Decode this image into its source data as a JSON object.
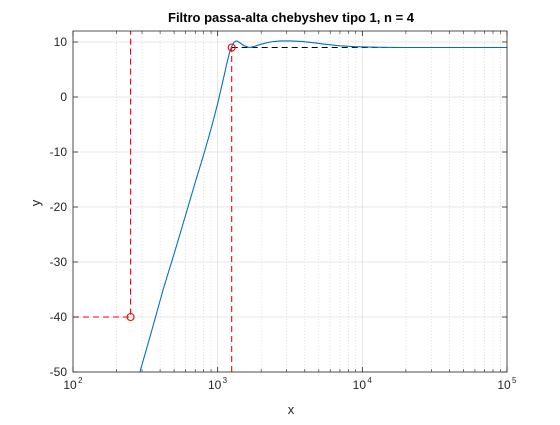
{
  "chart_data": {
    "type": "line",
    "title": "Filtro passa-alta chebyshev tipo 1, n = 4",
    "xlabel": "x",
    "ylabel": "y",
    "xscale": "log",
    "xlim": [
      100,
      100000
    ],
    "ylim": [
      -50,
      12
    ],
    "grid": "major and minor (dotted)",
    "x_tick_labels": [
      {
        "base": "10",
        "exp": "2",
        "value": 100
      },
      {
        "base": "10",
        "exp": "3",
        "value": 1000
      },
      {
        "base": "10",
        "exp": "4",
        "value": 10000
      },
      {
        "base": "10",
        "exp": "5",
        "value": 100000
      }
    ],
    "y_tick_labels": [
      "10",
      "0",
      "-10",
      "-20",
      "-30",
      "-40",
      "-50"
    ],
    "series": [
      {
        "color": "#0072BD",
        "x": [
          290,
          350,
          420,
          500,
          600,
          700,
          800,
          900,
          1000,
          1100,
          1150,
          1200,
          1250,
          1300,
          1350,
          1420,
          1500,
          1650,
          1800,
          2000,
          2300,
          2700,
          3200,
          3800,
          4500,
          5500,
          7000,
          9000,
          12000,
          20000,
          40000,
          100000
        ],
        "y": [
          -50,
          -42.5,
          -35,
          -28.5,
          -21.5,
          -15.5,
          -10.5,
          -5.8,
          -1.2,
          3.5,
          5.8,
          7.8,
          9.2,
          10.0,
          10.2,
          9.9,
          9.4,
          9.0,
          9.2,
          9.6,
          10.0,
          10.2,
          10.2,
          10.1,
          9.9,
          9.6,
          9.3,
          9.15,
          9.05,
          9.0,
          9.0,
          9.0
        ]
      }
    ],
    "reference_lines": [
      {
        "color": "#FF0000",
        "style": "dashed",
        "x": [
          100,
          250,
          250
        ],
        "y": [
          -40,
          -40,
          12
        ]
      },
      {
        "color": "#FF0000",
        "style": "dashed",
        "x": [
          1250,
          1250
        ],
        "y": [
          -50,
          9
        ]
      },
      {
        "color": "#000000",
        "style": "dashed",
        "x": [
          1250,
          100000
        ],
        "y": [
          9,
          9
        ]
      }
    ],
    "markers": [
      {
        "color": "#FF0000",
        "shape": "circle",
        "x": 250,
        "y": -40
      },
      {
        "color": "#FF0000",
        "shape": "circle",
        "x": 1250,
        "y": 9
      }
    ]
  }
}
